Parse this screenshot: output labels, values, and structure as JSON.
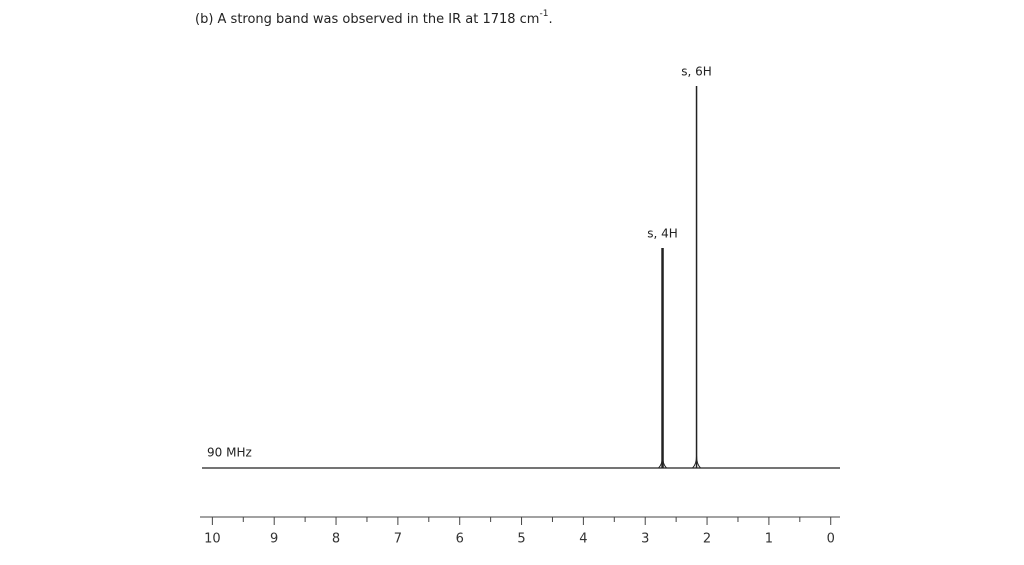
{
  "chart_data": {
    "type": "spectrum",
    "title": "(b) A strong band was observed in the IR at 1718 cm",
    "title_sup": "-1",
    "title_end": ".",
    "annotation": "90 MHz",
    "peaks": [
      {
        "x": 2.72,
        "label": "s, 4H"
      },
      {
        "x": 2.17,
        "label": "s, 6H"
      }
    ],
    "xlim": [
      10.2,
      -0.15
    ],
    "xticks": [
      10,
      9,
      8,
      7,
      6,
      5,
      4,
      3,
      2,
      1,
      0
    ],
    "color": "#222222"
  }
}
